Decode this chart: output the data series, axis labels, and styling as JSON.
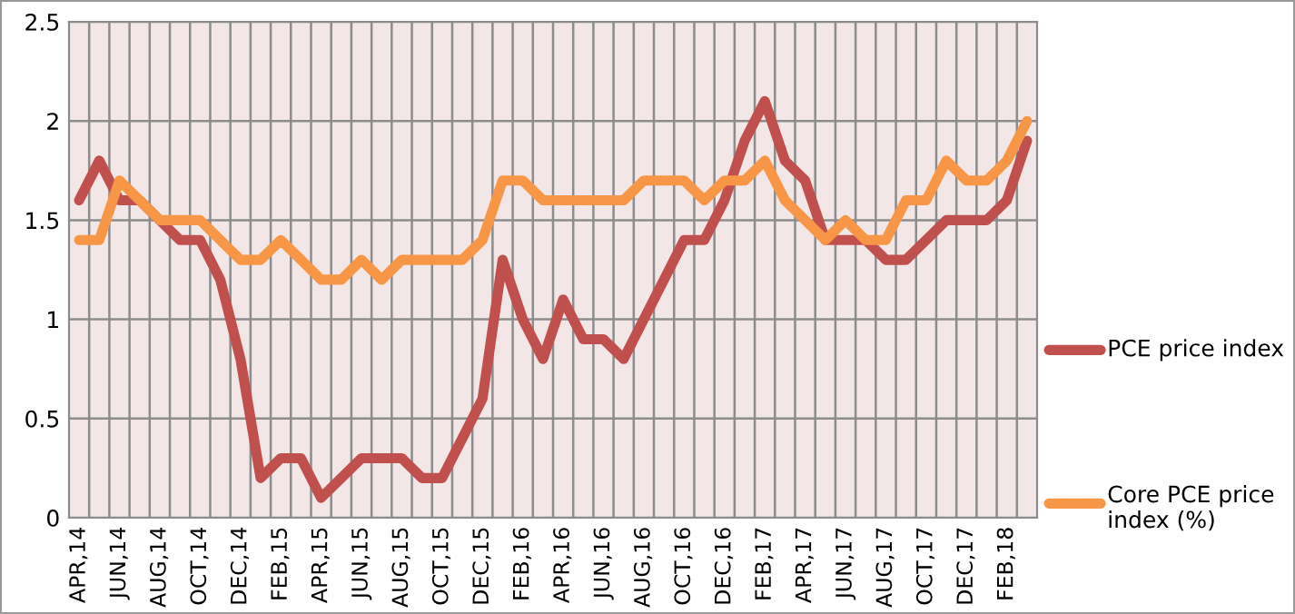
{
  "chart_data": {
    "type": "line",
    "categories": [
      "APR,14",
      null,
      "JUN,14",
      null,
      "AUG,14",
      null,
      "OCT,14",
      null,
      "DEC,14",
      null,
      "FEB,15",
      null,
      "APR,15",
      null,
      "JUN,15",
      null,
      "AUG,15",
      null,
      "OCT,15",
      null,
      "DEC,15",
      null,
      "FEB,16",
      null,
      "APR,16",
      null,
      "JUN,16",
      null,
      "AUG,16",
      null,
      "OCT,16",
      null,
      "DEC,16",
      null,
      "FEB,17",
      null,
      "APR,17",
      null,
      "JUN,17",
      null,
      "AUG,17",
      null,
      "OCT,17",
      null,
      "DEC,17",
      null,
      "FEB,18",
      null
    ],
    "series": [
      {
        "name": "PCE price index",
        "color": "#c0504d",
        "values": [
          1.6,
          1.8,
          1.6,
          1.6,
          1.5,
          1.4,
          1.4,
          1.2,
          0.8,
          0.2,
          0.3,
          0.3,
          0.1,
          0.2,
          0.3,
          0.3,
          0.3,
          0.2,
          0.2,
          0.4,
          0.6,
          1.3,
          1.0,
          0.8,
          1.1,
          0.9,
          0.9,
          0.8,
          1.0,
          1.2,
          1.4,
          1.4,
          1.6,
          1.9,
          2.1,
          1.8,
          1.7,
          1.4,
          1.4,
          1.4,
          1.3,
          1.3,
          1.4,
          1.5,
          1.5,
          1.5,
          1.6,
          1.9
        ]
      },
      {
        "name": "Core PCE price index (%)",
        "color": "#f79646",
        "values": [
          1.4,
          1.4,
          1.7,
          1.6,
          1.5,
          1.5,
          1.5,
          1.4,
          1.3,
          1.3,
          1.4,
          1.3,
          1.2,
          1.2,
          1.3,
          1.2,
          1.3,
          1.3,
          1.3,
          1.3,
          1.4,
          1.7,
          1.7,
          1.6,
          1.6,
          1.6,
          1.6,
          1.6,
          1.7,
          1.7,
          1.7,
          1.6,
          1.7,
          1.7,
          1.8,
          1.6,
          1.5,
          1.4,
          1.5,
          1.4,
          1.4,
          1.6,
          1.6,
          1.8,
          1.7,
          1.7,
          1.8,
          2.0
        ]
      }
    ],
    "ylim": [
      0,
      2.5
    ],
    "yticks": [
      0,
      0.5,
      1,
      1.5,
      2,
      2.5
    ],
    "grid": true,
    "legend": "right",
    "marker": "none",
    "line_style": "solid"
  }
}
